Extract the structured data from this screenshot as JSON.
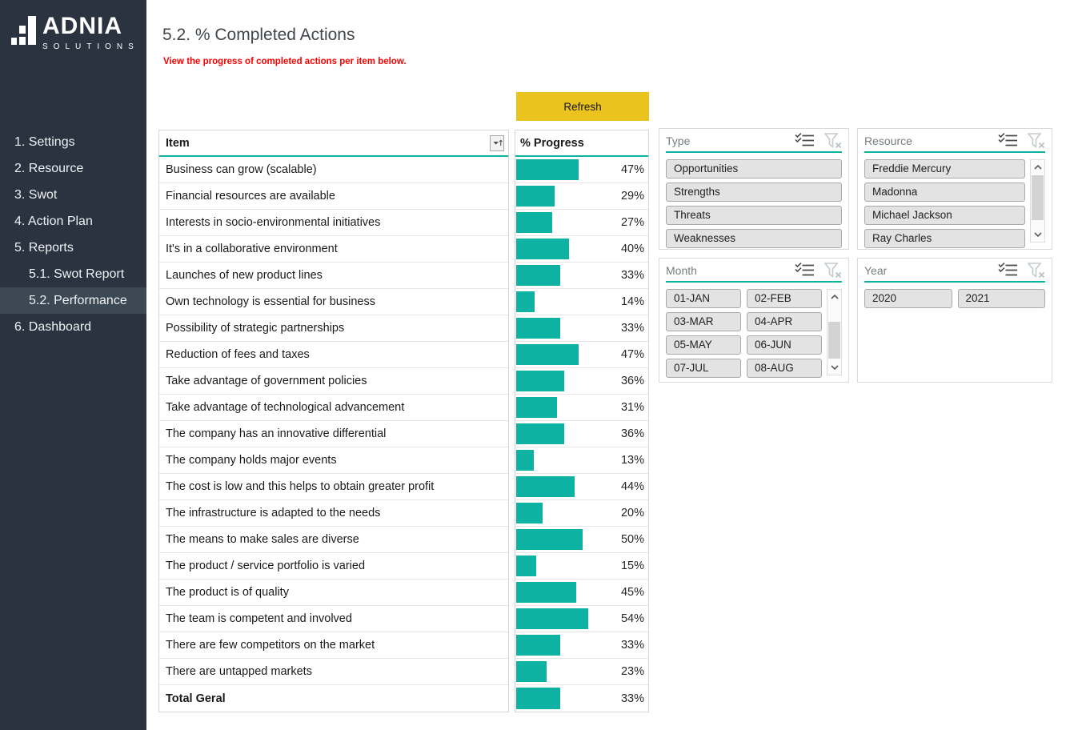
{
  "colors": {
    "sidebar_dark": "#2A333F",
    "accent_teal": "#0DB2A2",
    "refresh_yellow": "#EAC31E",
    "subtitle_red": "#FF0000"
  },
  "sidebar": {
    "logo": {
      "brand": "ADNIA",
      "sub": "SOLUTIONS"
    },
    "items": [
      {
        "label": "1. Settings",
        "indent": false,
        "active": false
      },
      {
        "label": "2. Resource",
        "indent": false,
        "active": false
      },
      {
        "label": "3. Swot",
        "indent": false,
        "active": false
      },
      {
        "label": "4. Action Plan",
        "indent": false,
        "active": false
      },
      {
        "label": "5. Reports",
        "indent": false,
        "active": false
      },
      {
        "label": "5.1. Swot Report",
        "indent": true,
        "active": false
      },
      {
        "label": "5.2. Performance",
        "indent": true,
        "active": true
      },
      {
        "label": "6. Dashboard",
        "indent": false,
        "active": false
      }
    ]
  },
  "header": {
    "title": "5.2. % Completed Actions",
    "subtitle": "View the progress of completed actions per item below.",
    "refresh_label": "Refresh"
  },
  "table": {
    "item_header": "Item",
    "progress_header": "% Progress",
    "rows": [
      {
        "item": "Business can grow (scalable)",
        "pct": 47
      },
      {
        "item": "Financial resources are available",
        "pct": 29
      },
      {
        "item": "Interests in socio-environmental initiatives",
        "pct": 27
      },
      {
        "item": "It's in a collaborative environment",
        "pct": 40
      },
      {
        "item": "Launches of new product lines",
        "pct": 33
      },
      {
        "item": "Own technology is essential for business",
        "pct": 14
      },
      {
        "item": "Possibility of strategic partnerships",
        "pct": 33
      },
      {
        "item": "Reduction of fees and taxes",
        "pct": 47
      },
      {
        "item": "Take advantage of government policies",
        "pct": 36
      },
      {
        "item": "Take advantage of technological advancement",
        "pct": 31
      },
      {
        "item": "The company has an innovative differential",
        "pct": 36
      },
      {
        "item": "The company holds major events",
        "pct": 13
      },
      {
        "item": "The cost is low and this helps to obtain greater profit",
        "pct": 44
      },
      {
        "item": "The infrastructure is adapted to the needs",
        "pct": 20
      },
      {
        "item": "The means to make sales are diverse",
        "pct": 50
      },
      {
        "item": "The product / service portfolio is varied",
        "pct": 15
      },
      {
        "item": "The product is of quality",
        "pct": 45
      },
      {
        "item": "The team is competent and involved",
        "pct": 54
      },
      {
        "item": "There are few competitors on the market",
        "pct": 33
      },
      {
        "item": "There are untapped markets",
        "pct": 23
      },
      {
        "item": "Total Geral",
        "pct": 33,
        "total": true
      }
    ]
  },
  "slicers": {
    "type": {
      "title": "Type",
      "items": [
        "Opportunities",
        "Strengths",
        "Threats",
        "Weaknesses"
      ],
      "columns": 1,
      "scrollbar": false,
      "icons": [
        "multi-select-icon",
        "clear-filter-icon"
      ]
    },
    "resource": {
      "title": "Resource",
      "items": [
        "Freddie Mercury",
        "Madonna",
        "Michael Jackson",
        "Ray Charles"
      ],
      "columns": 1,
      "scrollbar": true,
      "icons": [
        "multi-select-icon",
        "clear-filter-icon"
      ]
    },
    "month": {
      "title": "Month",
      "items": [
        "01-JAN",
        "02-FEB",
        "03-MAR",
        "04-APR",
        "05-MAY",
        "06-JUN",
        "07-JUL",
        "08-AUG"
      ],
      "columns": 2,
      "scrollbar": true,
      "icons": [
        "multi-select-icon",
        "clear-filter-icon"
      ]
    },
    "year": {
      "title": "Year",
      "items": [
        "2020",
        "2021"
      ],
      "columns": 2,
      "scrollbar": false,
      "icons": [
        "multi-select-icon",
        "clear-filter-icon"
      ]
    }
  }
}
